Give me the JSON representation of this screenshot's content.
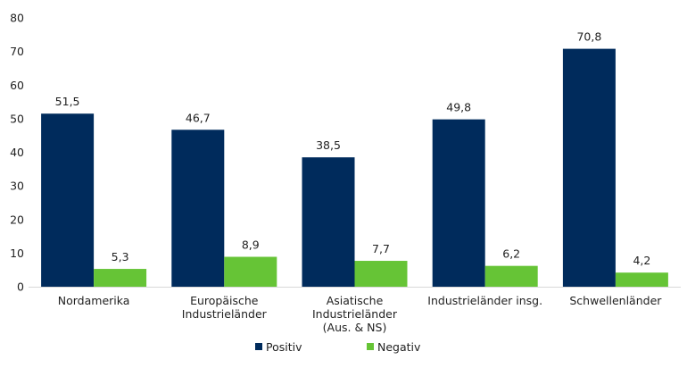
{
  "chart_data": {
    "type": "bar",
    "title": "",
    "xlabel": "",
    "ylabel": "",
    "ylim": [
      0,
      80
    ],
    "yticks": [
      "0",
      "10",
      "20",
      "30",
      "40",
      "50",
      "60",
      "70",
      "80"
    ],
    "grid": false,
    "legend_position": "bottom",
    "categories": [
      [
        "Nordamerika"
      ],
      [
        "Europäische",
        "Industrieländer"
      ],
      [
        "Asiatische",
        "Industrieländer",
        "(Aus. & NS)"
      ],
      [
        "Industrieländer insg."
      ],
      [
        "Schwellenländer"
      ]
    ],
    "series": [
      {
        "name": "Positiv",
        "color": "#002B5C",
        "values": [
          51.5,
          46.7,
          38.5,
          49.8,
          70.8
        ],
        "labels": [
          "51,5",
          "46,7",
          "38,5",
          "49,8",
          "70,8"
        ]
      },
      {
        "name": "Negativ",
        "color": "#66C436",
        "values": [
          5.3,
          8.9,
          7.7,
          6.2,
          4.2
        ],
        "labels": [
          "5,3",
          "8,9",
          "7,7",
          "6,2",
          "4,2"
        ]
      }
    ]
  }
}
